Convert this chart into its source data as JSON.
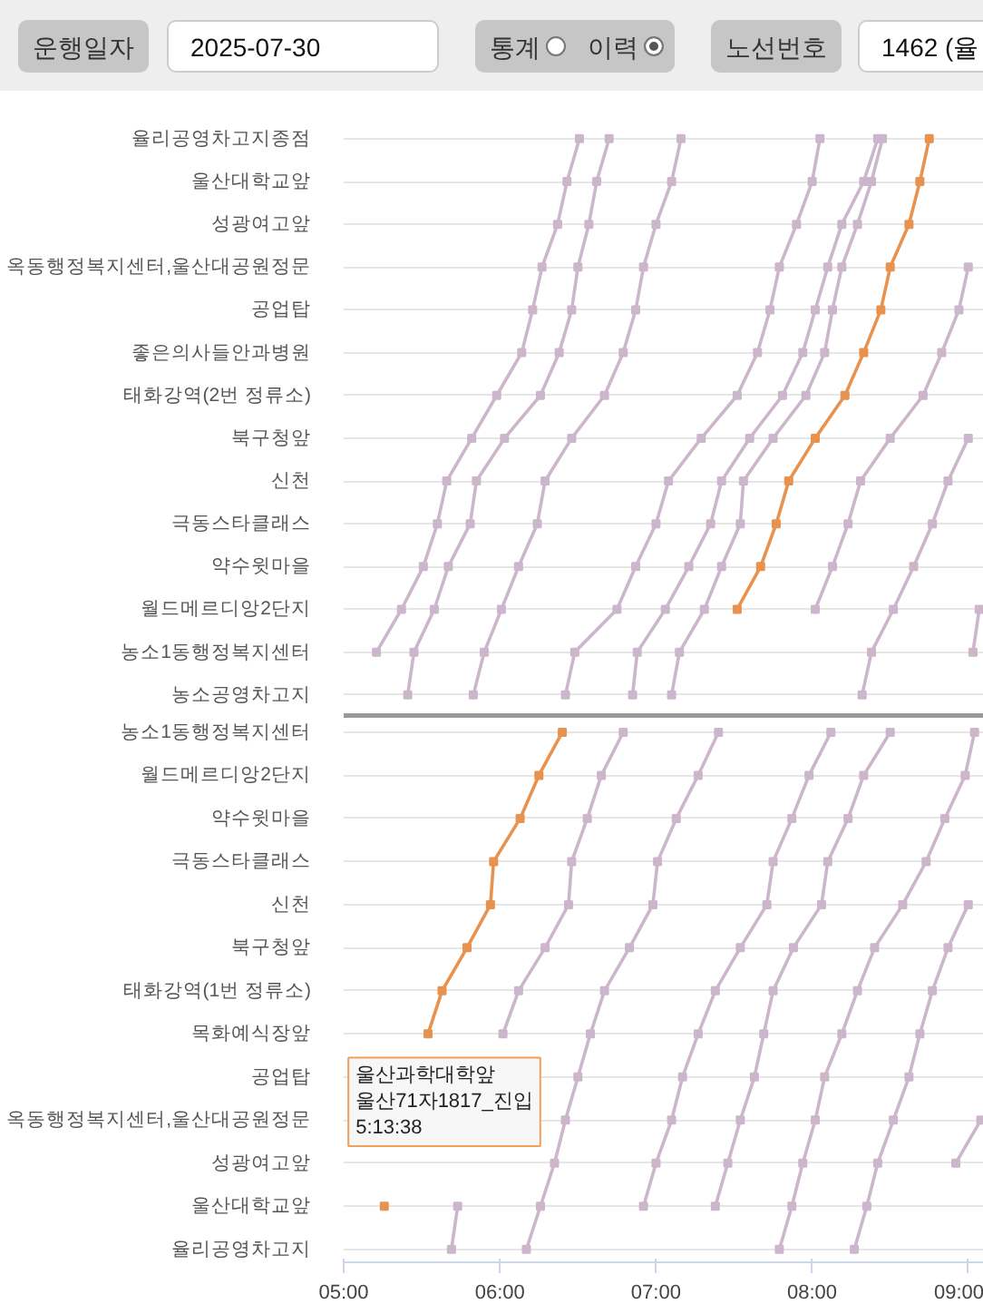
{
  "chart_data": [
    {
      "type": "line",
      "orientation": "horizontal",
      "categories": [
        "율리공영차고지종점",
        "울산대학교앞",
        "성광여고앞",
        "옥동행정복지센터,울산대공원정문",
        "공업탑",
        "좋은의사들안과병원",
        "태화강역(2번 정류소)",
        "북구청앞",
        "신천",
        "극동스타클래스",
        "약수윗마을",
        "월드메르디앙2단지",
        "농소1동행정복지센터",
        "농소공영차고지"
      ],
      "xlim": [
        5,
        9.1
      ],
      "tick_labels": "y",
      "grid": "y",
      "marker": "square",
      "annotations": [
        "운행일자",
        "2025-07-30",
        "통계",
        "이력",
        "노선번호",
        "1462 (율"
      ],
      "series": [
        {
          "color": "#cbb6cb",
          "values": [
            6.51,
            6.43,
            6.37,
            6.27,
            6.21,
            6.14,
            5.98,
            5.82,
            5.66,
            5.6,
            5.51,
            5.37,
            5.21,
            null
          ]
        },
        {
          "color": "#cbb6cb",
          "values": [
            6.7,
            6.62,
            6.57,
            6.5,
            6.46,
            6.38,
            6.26,
            6.03,
            5.85,
            5.81,
            5.67,
            5.58,
            5.45,
            5.41
          ]
        },
        {
          "color": "#cbb6cb",
          "values": [
            7.16,
            7.1,
            7.0,
            6.92,
            6.87,
            6.79,
            6.67,
            6.46,
            6.29,
            6.24,
            6.12,
            6.01,
            5.9,
            5.83
          ]
        },
        {
          "color": "#cbb6cb",
          "values": [
            8.05,
            8.0,
            7.9,
            7.79,
            7.73,
            7.65,
            7.52,
            7.29,
            7.08,
            7.0,
            6.87,
            6.75,
            6.48,
            6.42
          ]
        },
        {
          "color": "#cbb6cb",
          "values": [
            8.42,
            8.33,
            8.19,
            8.1,
            8.02,
            7.94,
            7.81,
            7.6,
            7.42,
            7.35,
            7.21,
            7.06,
            6.88,
            6.85
          ]
        },
        {
          "color": "#cbb6cb",
          "values": [
            8.45,
            8.38,
            8.29,
            8.19,
            8.13,
            8.08,
            7.96,
            7.75,
            7.56,
            7.54,
            7.42,
            7.31,
            7.15,
            7.1
          ]
        },
        {
          "color": "#e8924f",
          "values": [
            8.75,
            8.69,
            8.62,
            8.5,
            8.44,
            8.33,
            8.21,
            8.02,
            7.85,
            7.77,
            7.67,
            7.52,
            null,
            null
          ]
        },
        {
          "color": "#cbb6cb",
          "values": [
            null,
            null,
            null,
            9.0,
            8.94,
            8.83,
            8.71,
            8.5,
            8.31,
            8.23,
            8.13,
            8.02,
            null,
            null
          ]
        },
        {
          "color": "#cbb6cb",
          "values": [
            null,
            null,
            null,
            null,
            null,
            null,
            null,
            9.0,
            8.87,
            8.77,
            8.65,
            8.52,
            8.38,
            8.32
          ]
        },
        {
          "color": "#cbb6cb",
          "values": [
            null,
            null,
            null,
            null,
            null,
            null,
            null,
            null,
            null,
            null,
            null,
            9.07,
            9.03,
            null
          ]
        }
      ]
    },
    {
      "type": "line",
      "orientation": "horizontal",
      "categories": [
        "농소1동행정복지센터",
        "월드메르디앙2단지",
        "약수윗마을",
        "극동스타클래스",
        "신천",
        "북구청앞",
        "태화강역(1번 정류소)",
        "목화예식장앞",
        "공업탑",
        "옥동행정복지센터,울산대공원정문",
        "성광여고앞",
        "울산대학교앞",
        "율리공영차고지"
      ],
      "xlim": [
        5,
        9.1
      ],
      "xticks": [
        {
          "value": 5,
          "label": "05:00"
        },
        {
          "value": 6,
          "label": "06:00"
        },
        {
          "value": 7,
          "label": "07:00"
        },
        {
          "value": 8,
          "label": "08:00"
        },
        {
          "value": 9,
          "label": "09:00"
        }
      ],
      "grid": "y",
      "marker": "square",
      "annotations": [
        "울산과학대학앞\n울산71자1817_진입\n5:13:38"
      ],
      "series": [
        {
          "color": "#e8924f",
          "values": [
            6.4,
            6.25,
            6.13,
            5.96,
            5.94,
            5.79,
            5.63,
            5.54,
            null,
            null,
            null,
            5.26,
            null
          ]
        },
        {
          "color": "#cbb6cb",
          "values": [
            6.79,
            6.65,
            6.56,
            6.46,
            6.44,
            6.29,
            6.12,
            6.02,
            null,
            null,
            null,
            5.73,
            5.69
          ]
        },
        {
          "color": "#cbb6cb",
          "values": [
            7.4,
            7.27,
            7.13,
            7.01,
            6.98,
            6.83,
            6.67,
            6.58,
            6.5,
            6.42,
            6.35,
            6.26,
            6.17
          ]
        },
        {
          "color": "#cbb6cb",
          "values": [
            8.12,
            7.98,
            7.87,
            7.75,
            7.71,
            7.54,
            7.38,
            7.27,
            7.17,
            7.1,
            7.0,
            6.92,
            null
          ]
        },
        {
          "color": "#cbb6cb",
          "values": [
            8.5,
            8.33,
            8.23,
            8.1,
            8.06,
            7.88,
            7.75,
            7.69,
            7.63,
            7.54,
            7.46,
            7.38,
            null
          ]
        },
        {
          "color": "#cbb6cb",
          "values": [
            9.04,
            8.98,
            8.85,
            8.73,
            8.58,
            8.4,
            8.29,
            8.19,
            8.08,
            8.02,
            7.94,
            7.87,
            7.79
          ]
        },
        {
          "color": "#cbb6cb",
          "values": [
            null,
            null,
            null,
            null,
            9.0,
            8.87,
            8.77,
            8.69,
            8.62,
            8.52,
            8.42,
            8.35,
            8.27
          ]
        },
        {
          "color": "#cbb6cb",
          "values": [
            null,
            null,
            null,
            null,
            null,
            null,
            null,
            null,
            null,
            9.08,
            8.92,
            null,
            null
          ]
        }
      ]
    }
  ]
}
